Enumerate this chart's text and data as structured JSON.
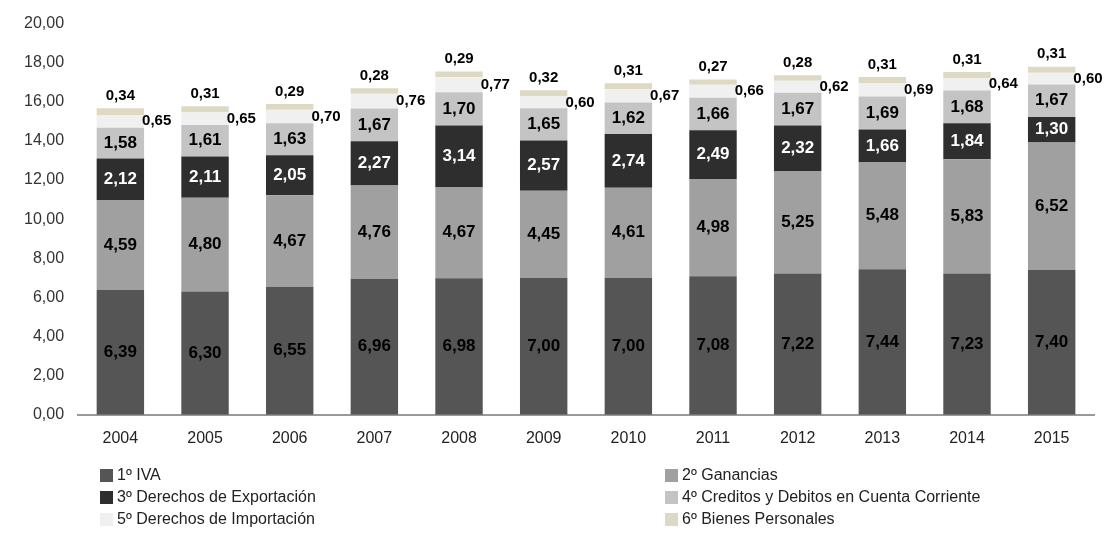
{
  "chart_data": {
    "type": "bar",
    "stacked": true,
    "legend": "bottom",
    "grid": false,
    "categories": [
      "2004",
      "2005",
      "2006",
      "2007",
      "2008",
      "2009",
      "2010",
      "2011",
      "2012",
      "2013",
      "2014",
      "2015"
    ],
    "ylim": [
      0,
      20
    ],
    "yticks": [
      {
        "value": 0,
        "label": "0,00"
      },
      {
        "value": 2,
        "label": "2,00"
      },
      {
        "value": 4,
        "label": "4,00"
      },
      {
        "value": 6,
        "label": "6,00"
      },
      {
        "value": 8,
        "label": "8,00"
      },
      {
        "value": 10,
        "label": "10,00"
      },
      {
        "value": 12,
        "label": "12,00"
      },
      {
        "value": 14,
        "label": "14,00"
      },
      {
        "value": 16,
        "label": "16,00"
      },
      {
        "value": 18,
        "label": "18,00"
      },
      {
        "value": 20,
        "label": "20,00"
      }
    ],
    "series": [
      {
        "name": "1º IVA",
        "color": "#555555",
        "values": [
          6.39,
          6.3,
          6.55,
          6.96,
          6.98,
          7.0,
          7.0,
          7.08,
          7.22,
          7.44,
          7.23,
          7.4
        ],
        "value_labels": [
          "6,39",
          "6,30",
          "6,55",
          "6,96",
          "6,98",
          "7,00",
          "7,00",
          "7,08",
          "7,22",
          "7,44",
          "7,23",
          "7,40"
        ]
      },
      {
        "name": "2º Ganancias",
        "color": "#a0a0a0",
        "values": [
          4.59,
          4.8,
          4.67,
          4.76,
          4.67,
          4.45,
          4.61,
          4.98,
          5.25,
          5.48,
          5.83,
          6.52
        ],
        "value_labels": [
          "4,59",
          "4,80",
          "4,67",
          "4,76",
          "4,67",
          "4,45",
          "4,61",
          "4,98",
          "5,25",
          "5,48",
          "5,83",
          "6,52"
        ]
      },
      {
        "name": "3º Derechos de Exportación",
        "color": "#2e2e2e",
        "values": [
          2.12,
          2.11,
          2.05,
          2.27,
          3.14,
          2.57,
          2.74,
          2.49,
          2.32,
          1.66,
          1.84,
          1.3
        ],
        "value_labels": [
          "2,12",
          "2,11",
          "2,05",
          "2,27",
          "3,14",
          "2,57",
          "2,74",
          "2,49",
          "2,32",
          "1,66",
          "1,84",
          "1,30"
        ]
      },
      {
        "name": "4º Creditos y Debitos en Cuenta Corriente",
        "color": "#c4c4c4",
        "values": [
          1.58,
          1.61,
          1.63,
          1.67,
          1.7,
          1.65,
          1.62,
          1.66,
          1.67,
          1.69,
          1.68,
          1.67
        ],
        "value_labels": [
          "1,58",
          "1,61",
          "1,63",
          "1,67",
          "1,70",
          "1,65",
          "1,62",
          "1,66",
          "1,67",
          "1,69",
          "1,68",
          "1,67"
        ]
      },
      {
        "name": "5º Derechos de Importación",
        "color": "#f0f0f0",
        "values": [
          0.65,
          0.65,
          0.7,
          0.76,
          0.77,
          0.6,
          0.67,
          0.66,
          0.62,
          0.69,
          0.64,
          0.6
        ],
        "value_labels": [
          "0,65",
          "0,65",
          "0,70",
          "0,76",
          "0,77",
          "0,60",
          "0,67",
          "0,66",
          "0,62",
          "0,69",
          "0,64",
          "0,60"
        ]
      },
      {
        "name": "6º Bienes Personales",
        "color": "#ddd9c3",
        "values": [
          0.34,
          0.31,
          0.29,
          0.28,
          0.29,
          0.32,
          0.31,
          0.27,
          0.28,
          0.31,
          0.31,
          0.31
        ],
        "value_labels": [
          "0,34",
          "0,31",
          "0,29",
          "0,28",
          "0,29",
          "0,32",
          "0,31",
          "0,27",
          "0,28",
          "0,31",
          "0,31",
          "0,31"
        ]
      }
    ]
  }
}
